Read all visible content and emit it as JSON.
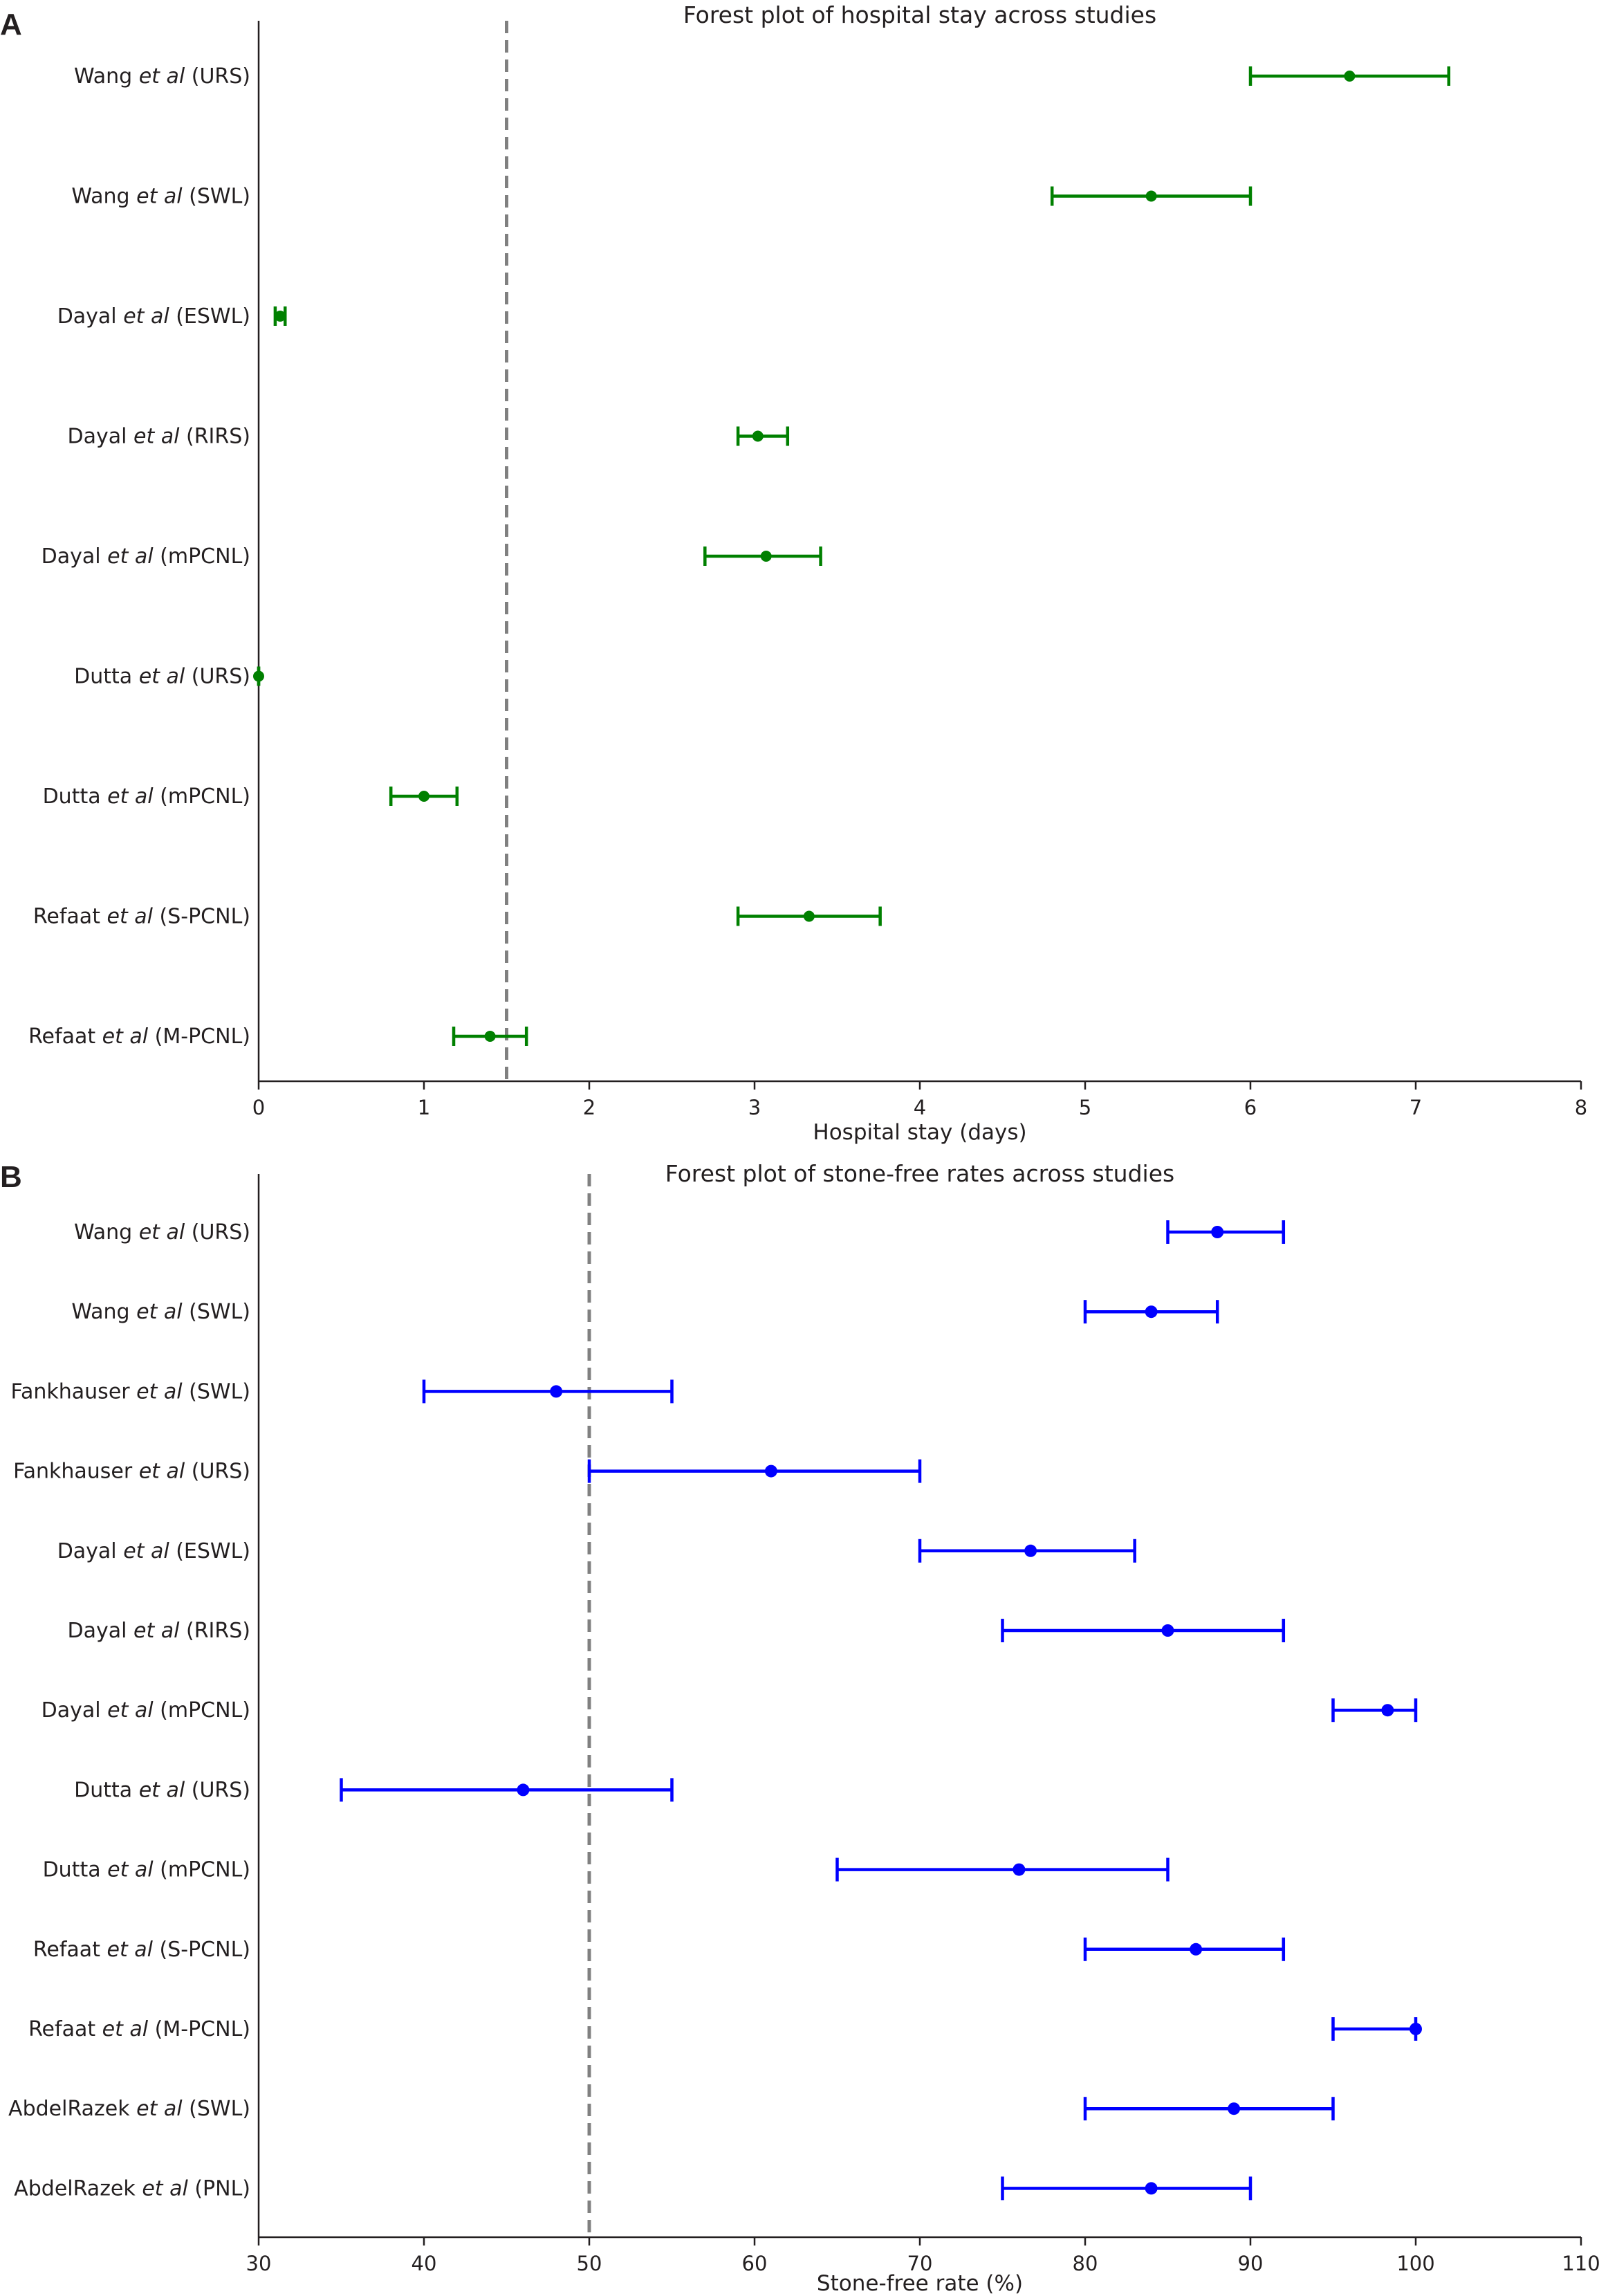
{
  "figure": {
    "panels": [
      {
        "letter": "A",
        "chart_data": {
          "type": "forest",
          "title": "Forest plot of hospital stay across studies",
          "xlabel": "Hospital stay (days)",
          "ylabel": "",
          "xlim": [
            0,
            8
          ],
          "xticks": [
            0,
            1,
            2,
            3,
            4,
            5,
            6,
            7,
            8
          ],
          "reference_line": 1.5,
          "color": "#008000",
          "grid": false,
          "studies": [
            {
              "author": "Wang",
              "etal": "et al",
              "arm": "(URS)",
              "estimate": 6.6,
              "lower": 6.0,
              "upper": 7.2
            },
            {
              "author": "Wang",
              "etal": "et al",
              "arm": "(SWL)",
              "estimate": 5.4,
              "lower": 4.8,
              "upper": 6.0
            },
            {
              "author": "Dayal",
              "etal": "et al",
              "arm": "(ESWL)",
              "estimate": 0.13,
              "lower": 0.1,
              "upper": 0.16
            },
            {
              "author": "Dayal",
              "etal": "et al",
              "arm": "(RIRS)",
              "estimate": 3.02,
              "lower": 2.9,
              "upper": 3.2
            },
            {
              "author": "Dayal",
              "etal": "et al",
              "arm": "(mPCNL)",
              "estimate": 3.07,
              "lower": 2.7,
              "upper": 3.4
            },
            {
              "author": "Dutta",
              "etal": "et al",
              "arm": "(URS)",
              "estimate": 0.0,
              "lower": 0.0,
              "upper": 0.0
            },
            {
              "author": "Dutta",
              "etal": "et al",
              "arm": "(mPCNL)",
              "estimate": 1.0,
              "lower": 0.8,
              "upper": 1.2
            },
            {
              "author": "Refaat",
              "etal": "et al",
              "arm": "(S-PCNL)",
              "estimate": 3.33,
              "lower": 2.9,
              "upper": 3.76
            },
            {
              "author": "Refaat",
              "etal": "et al",
              "arm": "(M-PCNL)",
              "estimate": 1.4,
              "lower": 1.18,
              "upper": 1.62
            }
          ]
        }
      },
      {
        "letter": "B",
        "chart_data": {
          "type": "forest",
          "title": "Forest plot of stone-free rates across studies",
          "xlabel": "Stone-free rate (%)",
          "ylabel": "",
          "xlim": [
            30,
            110
          ],
          "xticks": [
            30,
            40,
            50,
            60,
            70,
            80,
            90,
            100,
            110
          ],
          "reference_line": 50,
          "color": "#0000ff",
          "grid": false,
          "studies": [
            {
              "author": "Wang",
              "etal": "et al",
              "arm": "(URS)",
              "estimate": 88.0,
              "lower": 85.0,
              "upper": 92.0
            },
            {
              "author": "Wang",
              "etal": "et al",
              "arm": "(SWL)",
              "estimate": 84.0,
              "lower": 80.0,
              "upper": 88.0
            },
            {
              "author": "Fankhauser",
              "etal": "et al",
              "arm": "(SWL)",
              "estimate": 48.0,
              "lower": 40.0,
              "upper": 55.0
            },
            {
              "author": "Fankhauser",
              "etal": "et al",
              "arm": "(URS)",
              "estimate": 61.0,
              "lower": 50.0,
              "upper": 70.0
            },
            {
              "author": "Dayal",
              "etal": "et al",
              "arm": "(ESWL)",
              "estimate": 76.7,
              "lower": 70.0,
              "upper": 83.0
            },
            {
              "author": "Dayal",
              "etal": "et al",
              "arm": "(RIRS)",
              "estimate": 85.0,
              "lower": 75.0,
              "upper": 92.0
            },
            {
              "author": "Dayal",
              "etal": "et al",
              "arm": "(mPCNL)",
              "estimate": 98.3,
              "lower": 95.0,
              "upper": 100.0
            },
            {
              "author": "Dutta",
              "etal": "et al",
              "arm": "(URS)",
              "estimate": 46.0,
              "lower": 35.0,
              "upper": 55.0
            },
            {
              "author": "Dutta",
              "etal": "et al",
              "arm": "(mPCNL)",
              "estimate": 76.0,
              "lower": 65.0,
              "upper": 85.0
            },
            {
              "author": "Refaat",
              "etal": "et al",
              "arm": "(S-PCNL)",
              "estimate": 86.7,
              "lower": 80.0,
              "upper": 92.0
            },
            {
              "author": "Refaat",
              "etal": "et al",
              "arm": "(M-PCNL)",
              "estimate": 100.0,
              "lower": 95.0,
              "upper": 100.0
            },
            {
              "author": "AbdelRazek",
              "etal": "et al",
              "arm": "(SWL)",
              "estimate": 89.0,
              "lower": 80.0,
              "upper": 95.0
            },
            {
              "author": "AbdelRazek",
              "etal": "et al",
              "arm": "(PNL)",
              "estimate": 84.0,
              "lower": 75.0,
              "upper": 90.0
            }
          ]
        }
      }
    ]
  }
}
